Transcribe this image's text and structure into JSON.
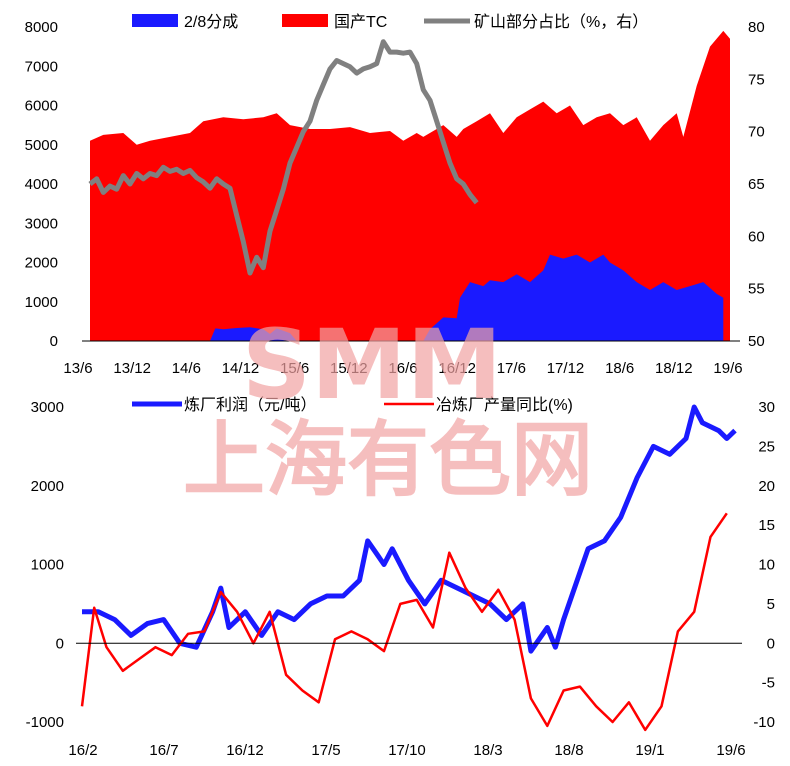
{
  "watermark": {
    "top": "SMM",
    "bottom": "上海有色网",
    "color": "#f2a3a3",
    "opacity": 0.7
  },
  "chart_data": [
    {
      "type": "area",
      "x_labels": [
        "13/6",
        "13/12",
        "14/6",
        "14/12",
        "15/6",
        "15/12",
        "16/6",
        "16/12",
        "17/6",
        "17/12",
        "18/6",
        "18/12",
        "19/6"
      ],
      "y_left_ticks": [
        "0",
        "1000",
        "2000",
        "3000",
        "4000",
        "5000",
        "6000",
        "7000",
        "8000"
      ],
      "y_right_ticks": [
        "50",
        "55",
        "60",
        "65",
        "70",
        "75",
        "80"
      ],
      "ylim_left": [
        0,
        8000
      ],
      "ylim_right": [
        50,
        80
      ],
      "series": [
        {
          "name": "2/8分成",
          "type": "area",
          "axis": "left",
          "color": "#1a1aff",
          "points": [
            [
              0,
              0
            ],
            [
              18,
              0
            ],
            [
              18.8,
              320
            ],
            [
              20,
              300
            ],
            [
              22,
              330
            ],
            [
              24,
              350
            ],
            [
              26,
              300
            ],
            [
              27,
              180
            ],
            [
              28,
              320
            ],
            [
              30,
              200
            ],
            [
              31,
              0
            ],
            [
              50,
              0
            ],
            [
              51,
              300
            ],
            [
              53,
              600
            ],
            [
              55,
              580
            ],
            [
              55.5,
              1100
            ],
            [
              57,
              1500
            ],
            [
              59,
              1400
            ],
            [
              60,
              1550
            ],
            [
              62,
              1500
            ],
            [
              64,
              1700
            ],
            [
              66,
              1500
            ],
            [
              68,
              1800
            ],
            [
              69,
              2200
            ],
            [
              71,
              2100
            ],
            [
              73,
              2200
            ],
            [
              75,
              2000
            ],
            [
              77,
              2200
            ],
            [
              78,
              2000
            ],
            [
              80,
              1800
            ],
            [
              82,
              1500
            ],
            [
              84,
              1300
            ],
            [
              86,
              1500
            ],
            [
              88,
              1300
            ],
            [
              90,
              1400
            ],
            [
              92,
              1500
            ],
            [
              94,
              1200
            ],
            [
              95,
              1100
            ]
          ]
        },
        {
          "name": "国产TC",
          "type": "area",
          "axis": "left",
          "color": "#ff0000",
          "points": [
            [
              0,
              5100
            ],
            [
              2,
              5250
            ],
            [
              5,
              5300
            ],
            [
              7,
              5000
            ],
            [
              9,
              5100
            ],
            [
              12,
              5200
            ],
            [
              15,
              5300
            ],
            [
              17,
              5600
            ],
            [
              20,
              5700
            ],
            [
              23,
              5650
            ],
            [
              26,
              5700
            ],
            [
              28,
              5800
            ],
            [
              30,
              5500
            ],
            [
              33,
              5400
            ],
            [
              36,
              5400
            ],
            [
              39,
              5450
            ],
            [
              42,
              5300
            ],
            [
              45,
              5350
            ],
            [
              47,
              5100
            ],
            [
              49,
              5300
            ],
            [
              50,
              5200
            ],
            [
              52,
              5400
            ],
            [
              53,
              5500
            ],
            [
              55,
              5200
            ],
            [
              56,
              5400
            ],
            [
              58,
              5600
            ],
            [
              60,
              5800
            ],
            [
              62,
              5300
            ],
            [
              64,
              5700
            ],
            [
              66,
              5900
            ],
            [
              68,
              6100
            ],
            [
              70,
              5800
            ],
            [
              72,
              6000
            ],
            [
              74,
              5500
            ],
            [
              76,
              5700
            ],
            [
              78,
              5800
            ],
            [
              80,
              5500
            ],
            [
              82,
              5700
            ],
            [
              84,
              5100
            ],
            [
              86,
              5500
            ],
            [
              88,
              5800
            ],
            [
              89,
              5200
            ],
            [
              91,
              6500
            ],
            [
              93,
              7500
            ],
            [
              95,
              7900
            ],
            [
              96,
              7700
            ]
          ]
        },
        {
          "name": "矿山部分占比（%，右）",
          "type": "line",
          "axis": "right",
          "color": "#808080",
          "points": [
            [
              0,
              65
            ],
            [
              1,
              65.5
            ],
            [
              2,
              64.2
            ],
            [
              3,
              64.8
            ],
            [
              4,
              64.5
            ],
            [
              5,
              65.8
            ],
            [
              6,
              65
            ],
            [
              7,
              66
            ],
            [
              8,
              65.5
            ],
            [
              9,
              66
            ],
            [
              10,
              65.8
            ],
            [
              11,
              66.6
            ],
            [
              12,
              66.2
            ],
            [
              13,
              66.4
            ],
            [
              14,
              66
            ],
            [
              15,
              66.3
            ],
            [
              16,
              65.6
            ],
            [
              17,
              65.2
            ],
            [
              18,
              64.6
            ],
            [
              19,
              65.5
            ],
            [
              20,
              65
            ],
            [
              21,
              64.6
            ],
            [
              22,
              62
            ],
            [
              23,
              59.5
            ],
            [
              24,
              56.5
            ],
            [
              25,
              58
            ],
            [
              26,
              57
            ],
            [
              27,
              60.5
            ],
            [
              28,
              62.5
            ],
            [
              29,
              64.5
            ],
            [
              30,
              67
            ],
            [
              31,
              68.5
            ],
            [
              32,
              70
            ],
            [
              33,
              71
            ],
            [
              34,
              73
            ],
            [
              35,
              74.5
            ],
            [
              36,
              76
            ],
            [
              37,
              76.8
            ],
            [
              38,
              76.5
            ],
            [
              39,
              76.2
            ],
            [
              40,
              75.6
            ],
            [
              41,
              76
            ],
            [
              42,
              76.2
            ],
            [
              43,
              76.5
            ],
            [
              44,
              78.6
            ],
            [
              45,
              77.6
            ],
            [
              46,
              77.6
            ],
            [
              47,
              77.5
            ],
            [
              48,
              77.6
            ],
            [
              49,
              76.5
            ],
            [
              50,
              74
            ],
            [
              51,
              73
            ],
            [
              52,
              71
            ],
            [
              53,
              69
            ],
            [
              54,
              67
            ],
            [
              55,
              65.5
            ],
            [
              56,
              65
            ],
            [
              57,
              64
            ],
            [
              58,
              63.2
            ]
          ]
        }
      ]
    },
    {
      "type": "line",
      "x_labels": [
        "16/2",
        "16/7",
        "16/12",
        "17/5",
        "17/10",
        "18/3",
        "18/8",
        "19/1",
        "19/6"
      ],
      "y_left_ticks": [
        "-1000",
        "0",
        "1000",
        "2000",
        "3000"
      ],
      "y_right_ticks": [
        "-10",
        "-5",
        "0",
        "5",
        "10",
        "15",
        "20",
        "25",
        "30"
      ],
      "ylim_left": [
        -1000,
        3000
      ],
      "ylim_right": [
        -10,
        30
      ],
      "series": [
        {
          "name": "炼厂利润（元/吨）",
          "axis": "left",
          "color": "#1a1aff",
          "points": [
            [
              0,
              400
            ],
            [
              2,
              400
            ],
            [
              4,
              300
            ],
            [
              6,
              100
            ],
            [
              8,
              250
            ],
            [
              10,
              300
            ],
            [
              12,
              0
            ],
            [
              14,
              -50
            ],
            [
              16,
              400
            ],
            [
              17,
              700
            ],
            [
              18,
              200
            ],
            [
              20,
              400
            ],
            [
              22,
              100
            ],
            [
              24,
              400
            ],
            [
              26,
              300
            ],
            [
              28,
              500
            ],
            [
              30,
              600
            ],
            [
              32,
              600
            ],
            [
              34,
              800
            ],
            [
              35,
              1300
            ],
            [
              36,
              1150
            ],
            [
              37,
              1000
            ],
            [
              38,
              1200
            ],
            [
              40,
              800
            ],
            [
              42,
              500
            ],
            [
              44,
              800
            ],
            [
              46,
              700
            ],
            [
              48,
              600
            ],
            [
              50,
              500
            ],
            [
              52,
              300
            ],
            [
              54,
              500
            ],
            [
              55,
              -100
            ],
            [
              57,
              200
            ],
            [
              58,
              -50
            ],
            [
              59,
              300
            ],
            [
              61,
              900
            ],
            [
              62,
              1200
            ],
            [
              64,
              1300
            ],
            [
              66,
              1600
            ],
            [
              68,
              2100
            ],
            [
              70,
              2500
            ],
            [
              72,
              2400
            ],
            [
              74,
              2600
            ],
            [
              75,
              3000
            ],
            [
              76,
              2800
            ],
            [
              78,
              2700
            ],
            [
              79,
              2600
            ],
            [
              80,
              2700
            ]
          ]
        },
        {
          "name": "冶炼厂产量同比(%)",
          "axis": "right",
          "color": "#ff0000",
          "points": [
            [
              0,
              -8
            ],
            [
              1.5,
              4.5
            ],
            [
              3,
              -0.5
            ],
            [
              5,
              -3.5
            ],
            [
              7,
              -2
            ],
            [
              9,
              -0.5
            ],
            [
              11,
              -1.5
            ],
            [
              13,
              1.2
            ],
            [
              15,
              1.5
            ],
            [
              17,
              6.5
            ],
            [
              19,
              4
            ],
            [
              21,
              0
            ],
            [
              23,
              4
            ],
            [
              25,
              -4
            ],
            [
              27,
              -6
            ],
            [
              29,
              -7.5
            ],
            [
              31,
              0.5
            ],
            [
              33,
              1.5
            ],
            [
              35,
              0.5
            ],
            [
              37,
              -1
            ],
            [
              39,
              5
            ],
            [
              41,
              5.5
            ],
            [
              43,
              2
            ],
            [
              45,
              11.5
            ],
            [
              47,
              7
            ],
            [
              49,
              4
            ],
            [
              51,
              6.8
            ],
            [
              53,
              3
            ],
            [
              55,
              -7
            ],
            [
              57,
              -10.5
            ],
            [
              59,
              -6
            ],
            [
              61,
              -5.5
            ],
            [
              63,
              -8
            ],
            [
              65,
              -10
            ],
            [
              67,
              -7.5
            ],
            [
              69,
              -11
            ],
            [
              71,
              -8
            ],
            [
              73,
              1.5
            ],
            [
              75,
              4
            ],
            [
              77,
              13.5
            ],
            [
              79,
              16.5
            ]
          ]
        }
      ]
    }
  ]
}
